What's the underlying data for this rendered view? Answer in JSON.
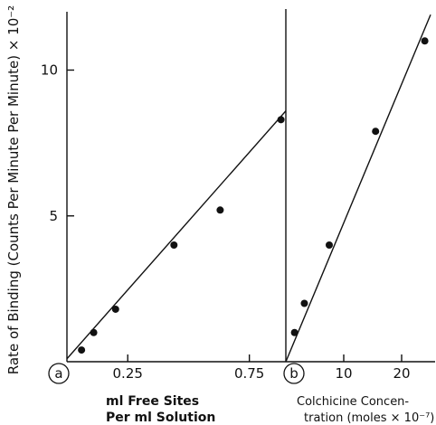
{
  "chart_data": [
    {
      "type": "scatter",
      "panel_label": "a",
      "ylabel": "Rate of Binding (Counts Per Minute Per Minute) × 10⁻²",
      "xlabel_lines": [
        "ml Free Sites",
        "Per ml Solution"
      ],
      "xlim": [
        0,
        0.9
      ],
      "ylim": [
        0,
        12
      ],
      "xticks": [
        0.25,
        0.75
      ],
      "xtick_labels": [
        "0.25",
        "0.75"
      ],
      "yticks": [
        5,
        10
      ],
      "ytick_labels": [
        "5",
        "10"
      ],
      "series": [
        {
          "points": [
            {
              "x": 0.06,
              "y": 0.4
            },
            {
              "x": 0.11,
              "y": 1.0
            },
            {
              "x": 0.2,
              "y": 1.8
            },
            {
              "x": 0.44,
              "y": 4.0
            },
            {
              "x": 0.63,
              "y": 5.2
            },
            {
              "x": 0.88,
              "y": 8.3
            }
          ],
          "fit_line": [
            {
              "x": 0.0,
              "y": 0.1
            },
            {
              "x": 0.9,
              "y": 8.6
            }
          ]
        }
      ]
    },
    {
      "type": "scatter",
      "panel_label": "b",
      "xlabel_lines": [
        "Colchicine Concen-",
        "tration (moles × 10⁻⁷)"
      ],
      "xlim": [
        0,
        25
      ],
      "ylim": [
        0,
        12
      ],
      "xticks": [
        10,
        20
      ],
      "xtick_labels": [
        "10",
        "20"
      ],
      "series": [
        {
          "points": [
            {
              "x": 1.5,
              "y": 1.0
            },
            {
              "x": 3.2,
              "y": 2.0
            },
            {
              "x": 7.5,
              "y": 4.0
            },
            {
              "x": 15.5,
              "y": 7.9
            },
            {
              "x": 24.0,
              "y": 11.0
            }
          ],
          "fit_line": [
            {
              "x": 0.0,
              "y": 0.0
            },
            {
              "x": 25.0,
              "y": 11.9
            }
          ]
        }
      ]
    }
  ]
}
